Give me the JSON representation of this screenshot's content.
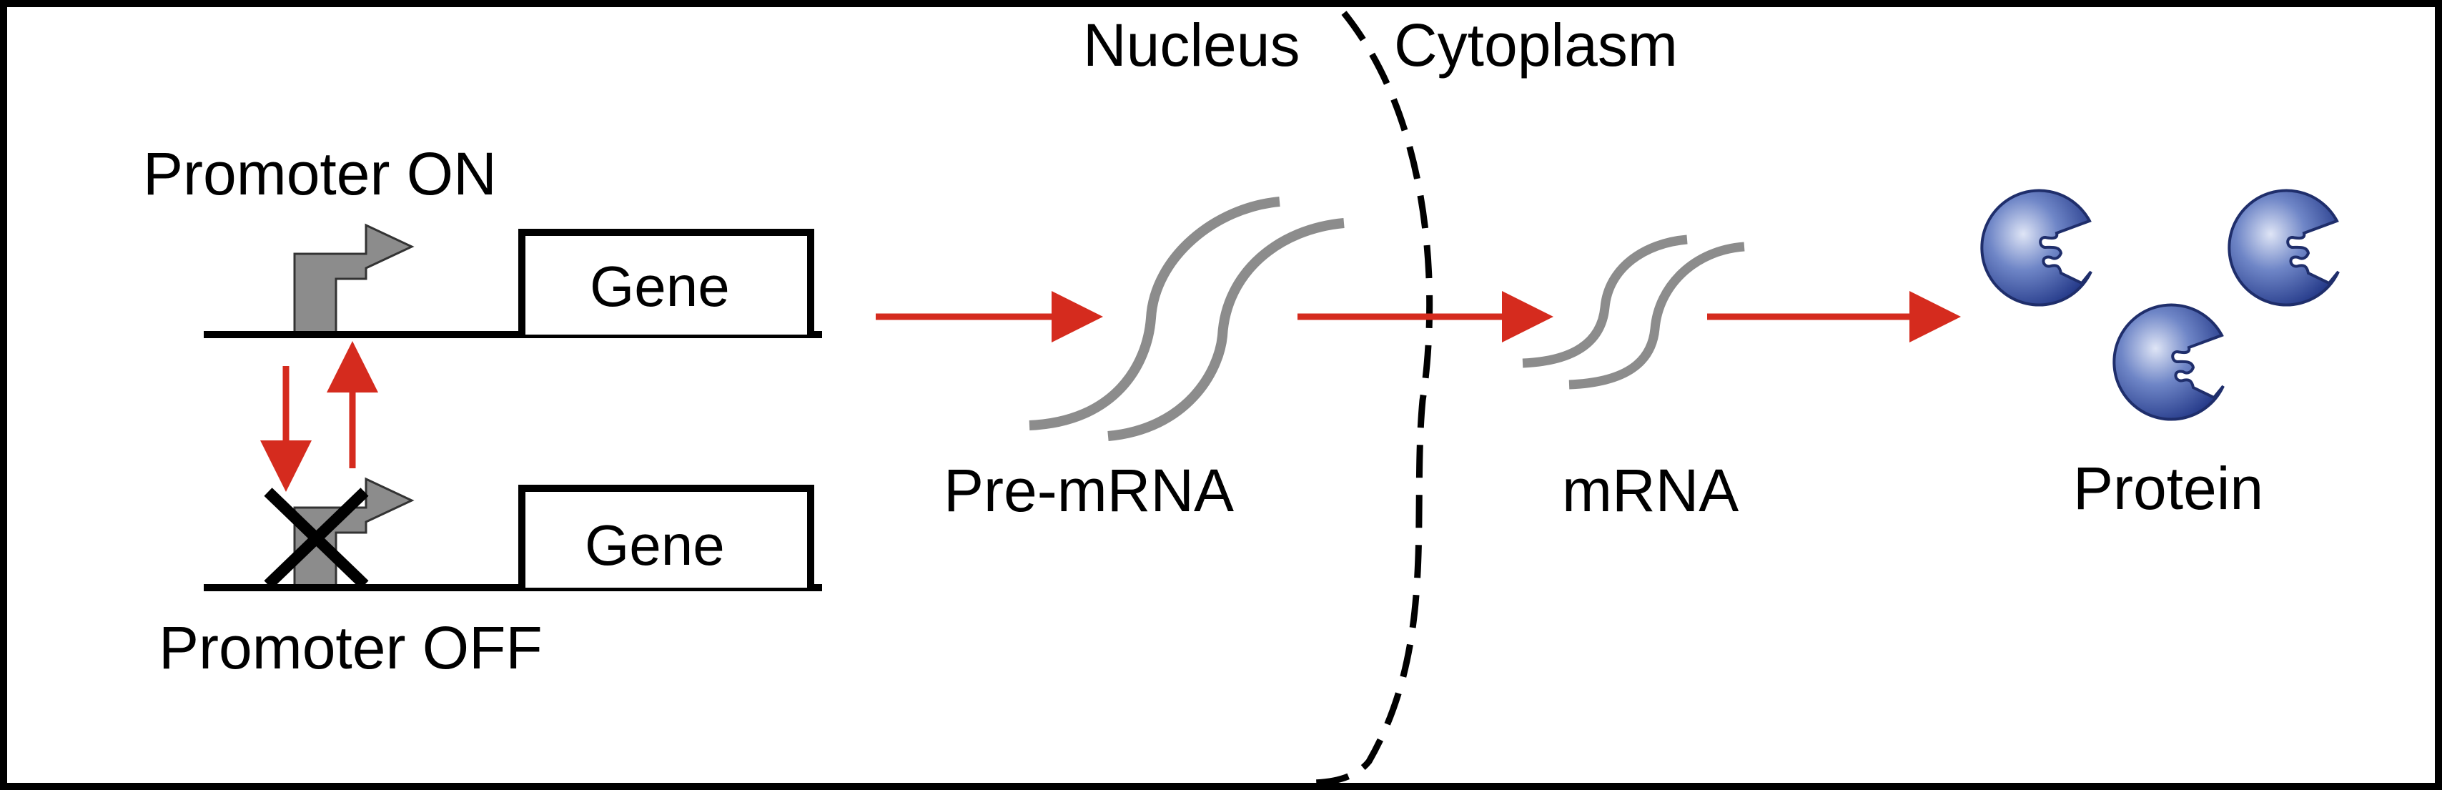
{
  "labels": {
    "nucleus": "Nucleus",
    "cytoplasm": "Cytoplasm",
    "promoter_on": "Promoter ON",
    "promoter_off": "Promoter OFF",
    "gene_on": "Gene",
    "gene_off": "Gene",
    "pre_mrna": "Pre-mRNA",
    "mrna": "mRNA",
    "protein": "Protein"
  },
  "colors": {
    "arrow": "#d52b1e",
    "promoter": "#8c8c8c",
    "rna": "#8c8c8c",
    "protein_light": "#c9d2ec",
    "protein_dark": "#2c3f8e",
    "outline": "#000000"
  }
}
